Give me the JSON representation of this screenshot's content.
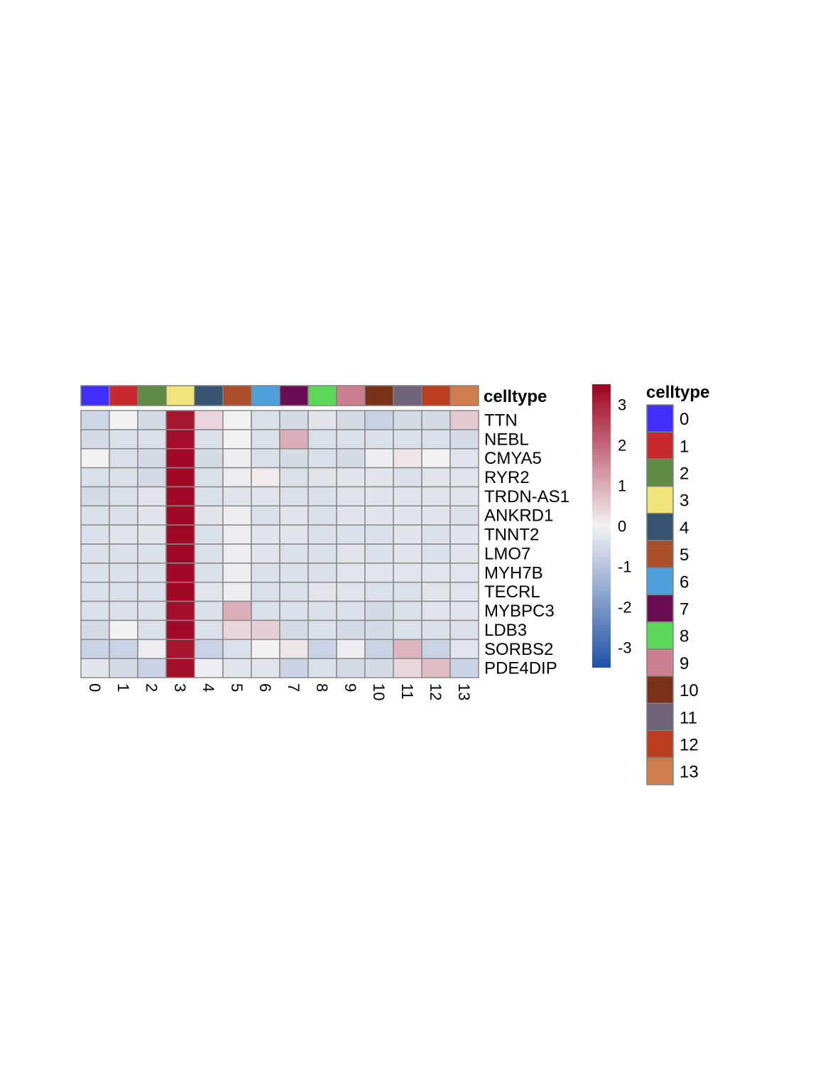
{
  "chart_data": {
    "type": "heatmap",
    "title": "",
    "xlabel": "",
    "ylabel": "",
    "columns": [
      "0",
      "1",
      "2",
      "3",
      "4",
      "5",
      "6",
      "7",
      "8",
      "9",
      "10",
      "11",
      "12",
      "13"
    ],
    "rows": [
      "TTN",
      "NEBL",
      "CMYA5",
      "RYR2",
      "TRDN-AS1",
      "ANKRD1",
      "TNNT2",
      "LMO7",
      "MYH7B",
      "TECRL",
      "MYBPC3",
      "LDB3",
      "SORBS2",
      "PDE4DIP"
    ],
    "values": [
      [
        -0.6,
        0.0,
        -0.5,
        3.2,
        0.4,
        0.0,
        -0.4,
        -0.5,
        -0.3,
        -0.5,
        -0.7,
        -0.5,
        -0.5,
        0.6
      ],
      [
        -0.5,
        -0.4,
        -0.4,
        3.3,
        -0.4,
        0.0,
        -0.4,
        1.0,
        -0.4,
        -0.4,
        -0.4,
        -0.4,
        -0.4,
        -0.5
      ],
      [
        0.0,
        -0.4,
        -0.5,
        3.4,
        -0.5,
        -0.1,
        -0.4,
        -0.5,
        -0.4,
        -0.5,
        -0.1,
        0.2,
        0.0,
        -0.3
      ],
      [
        -0.4,
        -0.4,
        -0.5,
        3.4,
        -0.4,
        -0.1,
        0.1,
        -0.4,
        -0.3,
        -0.3,
        -0.3,
        -0.4,
        -0.3,
        -0.3
      ],
      [
        -0.5,
        -0.4,
        -0.3,
        3.4,
        -0.4,
        -0.3,
        -0.3,
        -0.4,
        -0.4,
        -0.3,
        -0.3,
        -0.3,
        -0.3,
        -0.3
      ],
      [
        -0.4,
        -0.4,
        -0.3,
        3.4,
        -0.3,
        -0.1,
        -0.4,
        -0.3,
        -0.4,
        -0.3,
        -0.3,
        -0.3,
        -0.3,
        -0.4
      ],
      [
        -0.4,
        -0.3,
        -0.3,
        3.4,
        -0.4,
        -0.1,
        -0.3,
        -0.3,
        -0.4,
        -0.4,
        -0.4,
        -0.3,
        -0.4,
        -0.3
      ],
      [
        -0.4,
        -0.4,
        -0.4,
        3.4,
        -0.4,
        -0.1,
        -0.3,
        -0.4,
        -0.4,
        -0.3,
        -0.4,
        -0.3,
        -0.4,
        -0.3
      ],
      [
        -0.4,
        -0.4,
        -0.4,
        3.4,
        -0.4,
        -0.1,
        -0.4,
        -0.4,
        -0.4,
        -0.3,
        -0.3,
        -0.3,
        -0.3,
        -0.3
      ],
      [
        -0.4,
        -0.4,
        -0.4,
        3.4,
        -0.3,
        -0.1,
        -0.4,
        -0.4,
        -0.3,
        -0.3,
        -0.4,
        -0.4,
        -0.3,
        -0.3
      ],
      [
        -0.4,
        -0.4,
        -0.4,
        3.3,
        -0.4,
        1.0,
        -0.4,
        -0.4,
        -0.4,
        -0.4,
        -0.5,
        -0.4,
        -0.3,
        -0.3
      ],
      [
        -0.5,
        0.0,
        -0.4,
        3.4,
        -0.4,
        0.4,
        0.5,
        -0.5,
        -0.4,
        -0.5,
        -0.5,
        -0.4,
        -0.4,
        -0.4
      ],
      [
        -0.7,
        -0.7,
        -0.1,
        3.2,
        -0.7,
        -0.4,
        0.0,
        0.2,
        -0.7,
        -0.1,
        -0.7,
        0.9,
        -0.7,
        -0.3
      ],
      [
        -0.3,
        -0.5,
        -0.7,
        3.3,
        -0.1,
        -0.3,
        -0.3,
        -0.7,
        -0.4,
        -0.5,
        -0.5,
        0.4,
        0.8,
        -0.7
      ]
    ],
    "annotation_title": "celltype",
    "annotation_colors": [
      "#4030ff",
      "#c62a2c",
      "#5f8b45",
      "#efe47a",
      "#35546f",
      "#aa4f2c",
      "#4ea0d8",
      "#690c52",
      "#5dd758",
      "#cb7f91",
      "#7c3218",
      "#716479",
      "#bc3e1f",
      "#cd7d4b"
    ],
    "color_scale": {
      "min": -3.5,
      "max": 3.5,
      "low_color": "#1f52a5",
      "mid_color": "#f2f2f2",
      "high_color": "#a0001f",
      "ticks": [
        3,
        2,
        1,
        0,
        -1,
        -2,
        -3
      ]
    },
    "legend": {
      "title": "celltype",
      "labels": [
        "0",
        "1",
        "2",
        "3",
        "4",
        "5",
        "6",
        "7",
        "8",
        "9",
        "10",
        "11",
        "12",
        "13"
      ]
    }
  }
}
